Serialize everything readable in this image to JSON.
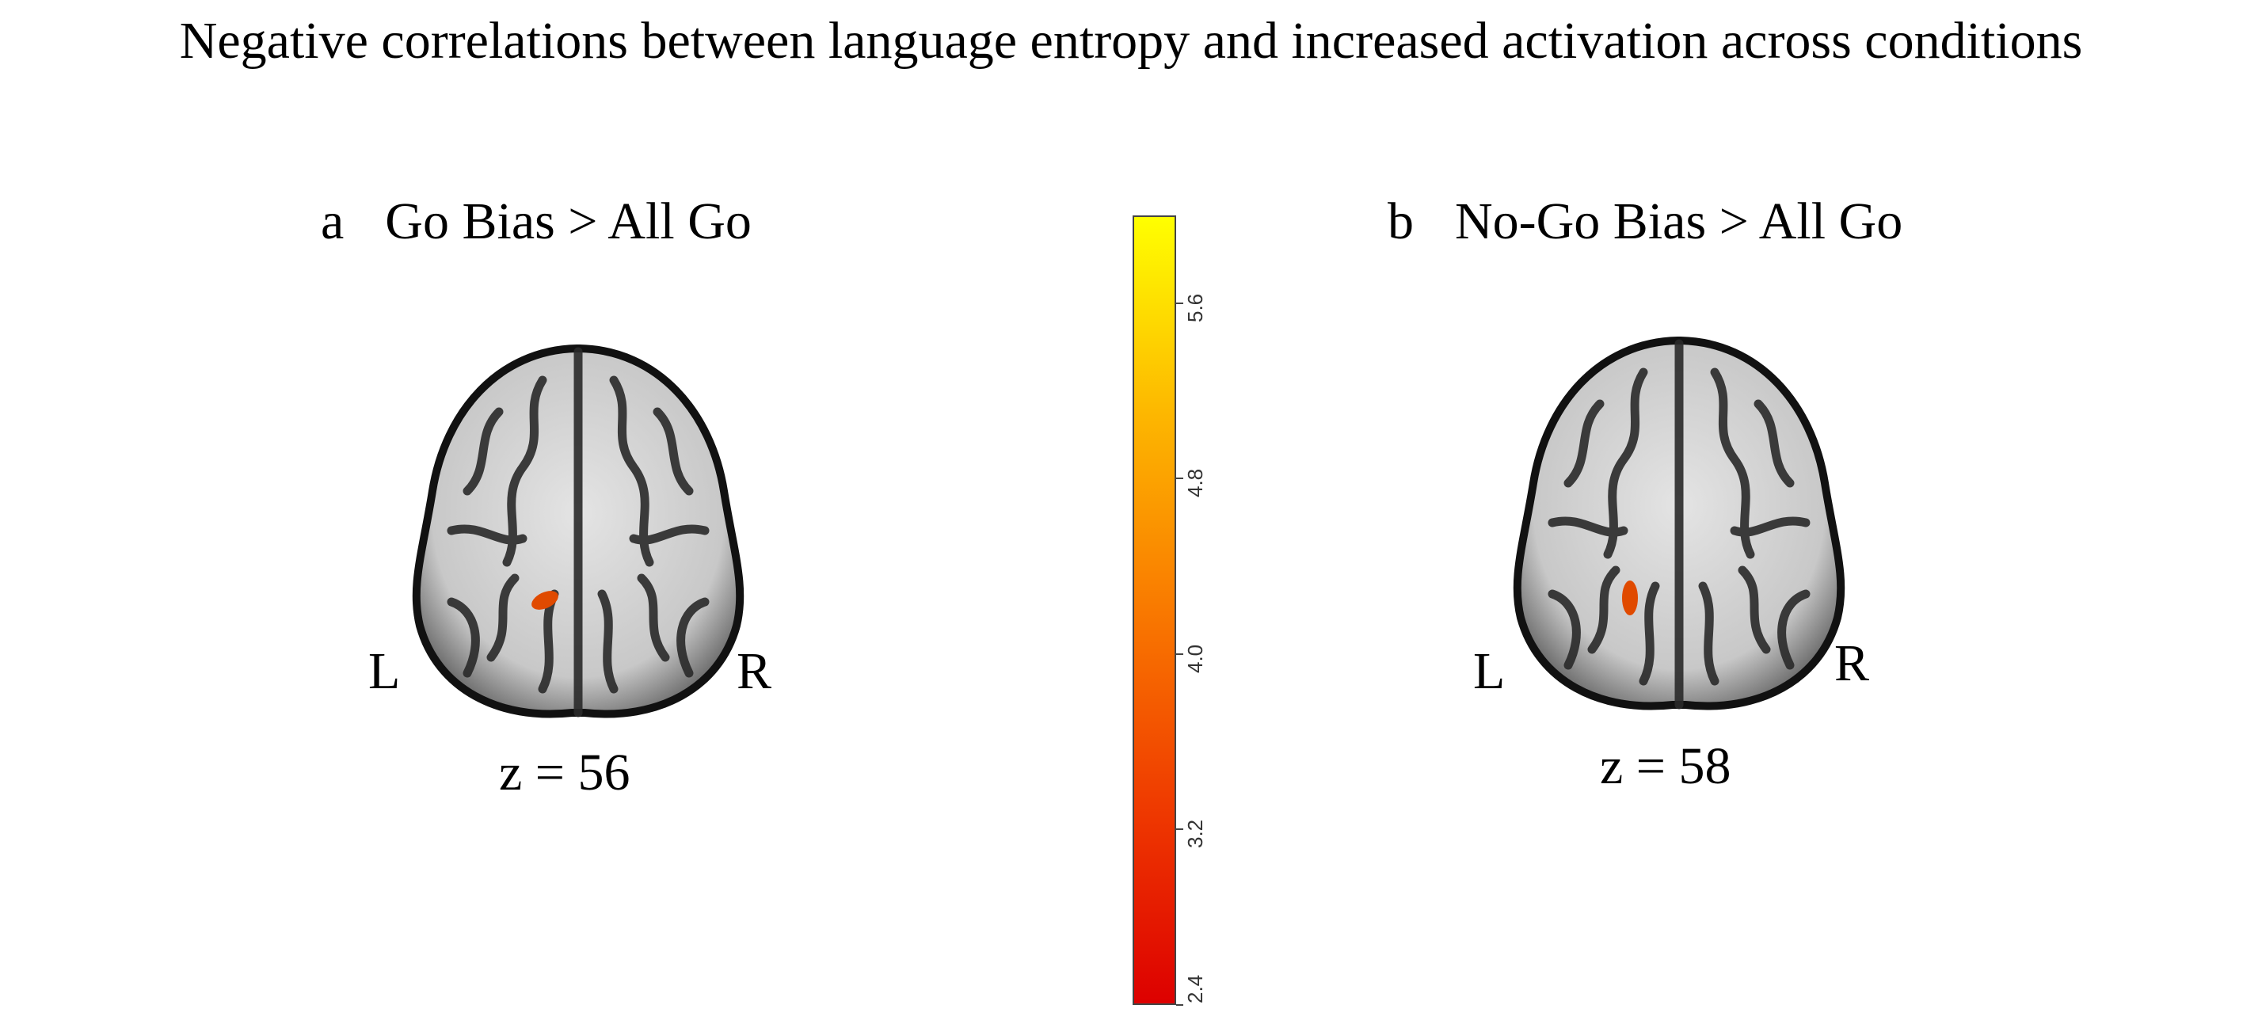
{
  "figure_title": "Negative correlations between language entropy and increased activation across conditions",
  "panels": [
    {
      "letter": "a",
      "label": "Go Bias > All Go",
      "left_label": "L",
      "right_label": "R",
      "slice": "z = 56"
    },
    {
      "letter": "b",
      "label": "No-Go Bias > All Go",
      "left_label": "L",
      "right_label": "R",
      "slice": "z = 58"
    }
  ],
  "colorbar": {
    "ticks": [
      "2.4",
      "3.2",
      "4.0",
      "4.8",
      "5.6"
    ],
    "colors": {
      "low": "#dd0000",
      "mid": "#f97900",
      "high": "#ffff00"
    }
  },
  "colors": {
    "activation": "#e04a00",
    "brain_gray": "#cfcfcf",
    "sulcus": "#1c1c1c"
  }
}
